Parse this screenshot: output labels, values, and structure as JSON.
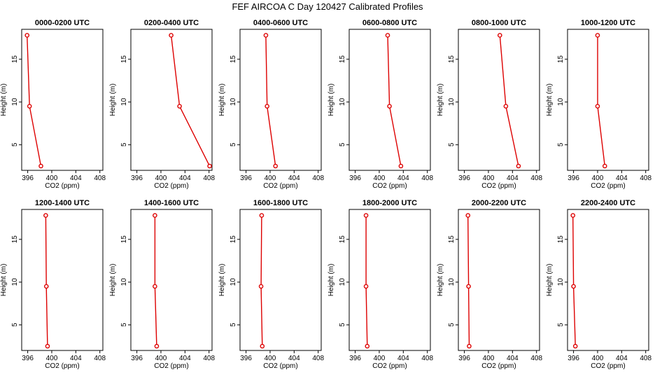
{
  "figure": {
    "title": "FEF AIRCOA C  Day 120427  Calibrated Profiles"
  },
  "chart_data": [
    {
      "type": "line",
      "title": "0000-0200 UTC",
      "xlabel": "CO2 (ppm)",
      "ylabel": "Height (m)",
      "xlim": [
        395,
        408.5
      ],
      "ylim": [
        2,
        18.5
      ],
      "x_ticks": [
        "396",
        "400",
        "404",
        "408"
      ],
      "y_ticks": [
        "5",
        "10",
        "15"
      ],
      "series": [
        {
          "x": [
            395.9,
            396.3,
            398.2
          ],
          "y": [
            17.8,
            9.5,
            2.5
          ],
          "color": "#dd0000"
        }
      ]
    },
    {
      "type": "line",
      "title": "0200-0400 UTC",
      "xlabel": "CO2 (ppm)",
      "ylabel": "Height (m)",
      "xlim": [
        395,
        408.5
      ],
      "ylim": [
        2,
        18.5
      ],
      "x_ticks": [
        "396",
        "400",
        "404",
        "408"
      ],
      "y_ticks": [
        "5",
        "10",
        "15"
      ],
      "series": [
        {
          "x": [
            401.7,
            403.1,
            408.1
          ],
          "y": [
            17.8,
            9.5,
            2.5
          ],
          "color": "#dd0000"
        }
      ]
    },
    {
      "type": "line",
      "title": "0400-0600 UTC",
      "xlabel": "CO2 (ppm)",
      "ylabel": "Height (m)",
      "xlim": [
        395,
        408.5
      ],
      "ylim": [
        2,
        18.5
      ],
      "x_ticks": [
        "396",
        "400",
        "404",
        "408"
      ],
      "y_ticks": [
        "5",
        "10",
        "15"
      ],
      "series": [
        {
          "x": [
            399.3,
            399.5,
            400.9
          ],
          "y": [
            17.8,
            9.5,
            2.5
          ],
          "color": "#dd0000"
        }
      ]
    },
    {
      "type": "line",
      "title": "0600-0800 UTC",
      "xlabel": "CO2 (ppm)",
      "ylabel": "Height (m)",
      "xlim": [
        395,
        408.5
      ],
      "ylim": [
        2,
        18.5
      ],
      "x_ticks": [
        "396",
        "400",
        "404",
        "408"
      ],
      "y_ticks": [
        "5",
        "10",
        "15"
      ],
      "series": [
        {
          "x": [
            401.4,
            401.7,
            403.6
          ],
          "y": [
            17.8,
            9.5,
            2.5
          ],
          "color": "#dd0000"
        }
      ]
    },
    {
      "type": "line",
      "title": "0800-1000 UTC",
      "xlabel": "CO2 (ppm)",
      "ylabel": "Height (m)",
      "xlim": [
        395,
        408.5
      ],
      "ylim": [
        2,
        18.5
      ],
      "x_ticks": [
        "396",
        "400",
        "404",
        "408"
      ],
      "y_ticks": [
        "5",
        "10",
        "15"
      ],
      "series": [
        {
          "x": [
            401.9,
            402.9,
            405.0
          ],
          "y": [
            17.8,
            9.5,
            2.5
          ],
          "color": "#dd0000"
        }
      ]
    },
    {
      "type": "line",
      "title": "1000-1200 UTC",
      "xlabel": "CO2 (ppm)",
      "ylabel": "Height (m)",
      "xlim": [
        395,
        408.5
      ],
      "ylim": [
        2,
        18.5
      ],
      "x_ticks": [
        "396",
        "400",
        "404",
        "408"
      ],
      "y_ticks": [
        "5",
        "10",
        "15"
      ],
      "series": [
        {
          "x": [
            400.0,
            400.0,
            401.2
          ],
          "y": [
            17.8,
            9.5,
            2.5
          ],
          "color": "#dd0000"
        }
      ]
    },
    {
      "type": "line",
      "title": "1200-1400 UTC",
      "xlabel": "CO2 (ppm)",
      "ylabel": "Height (m)",
      "xlim": [
        395,
        408.5
      ],
      "ylim": [
        2,
        18.5
      ],
      "x_ticks": [
        "396",
        "400",
        "404",
        "408"
      ],
      "y_ticks": [
        "5",
        "10",
        "15"
      ],
      "series": [
        {
          "x": [
            399.0,
            399.1,
            399.3
          ],
          "y": [
            17.8,
            9.5,
            2.5
          ],
          "color": "#dd0000"
        }
      ]
    },
    {
      "type": "line",
      "title": "1400-1600 UTC",
      "xlabel": "CO2 (ppm)",
      "ylabel": "Height (m)",
      "xlim": [
        395,
        408.5
      ],
      "ylim": [
        2,
        18.5
      ],
      "x_ticks": [
        "396",
        "400",
        "404",
        "408"
      ],
      "y_ticks": [
        "5",
        "10",
        "15"
      ],
      "series": [
        {
          "x": [
            399.0,
            399.0,
            399.3
          ],
          "y": [
            17.8,
            9.5,
            2.5
          ],
          "color": "#dd0000"
        }
      ]
    },
    {
      "type": "line",
      "title": "1600-1800 UTC",
      "xlabel": "CO2 (ppm)",
      "ylabel": "Height (m)",
      "xlim": [
        395,
        408.5
      ],
      "ylim": [
        2,
        18.5
      ],
      "x_ticks": [
        "396",
        "400",
        "404",
        "408"
      ],
      "y_ticks": [
        "5",
        "10",
        "15"
      ],
      "series": [
        {
          "x": [
            398.6,
            398.5,
            398.7
          ],
          "y": [
            17.8,
            9.5,
            2.5
          ],
          "color": "#dd0000"
        }
      ]
    },
    {
      "type": "line",
      "title": "1800-2000 UTC",
      "xlabel": "CO2 (ppm)",
      "ylabel": "Height (m)",
      "xlim": [
        395,
        408.5
      ],
      "ylim": [
        2,
        18.5
      ],
      "x_ticks": [
        "396",
        "400",
        "404",
        "408"
      ],
      "y_ticks": [
        "5",
        "10",
        "15"
      ],
      "series": [
        {
          "x": [
            397.8,
            397.8,
            398.0
          ],
          "y": [
            17.8,
            9.5,
            2.5
          ],
          "color": "#dd0000"
        }
      ]
    },
    {
      "type": "line",
      "title": "2000-2200 UTC",
      "xlabel": "CO2 (ppm)",
      "ylabel": "Height (m)",
      "xlim": [
        395,
        408.5
      ],
      "ylim": [
        2,
        18.5
      ],
      "x_ticks": [
        "396",
        "400",
        "404",
        "408"
      ],
      "y_ticks": [
        "5",
        "10",
        "15"
      ],
      "series": [
        {
          "x": [
            396.6,
            396.7,
            396.8
          ],
          "y": [
            17.8,
            9.5,
            2.5
          ],
          "color": "#dd0000"
        }
      ]
    },
    {
      "type": "line",
      "title": "2200-2400 UTC",
      "xlabel": "CO2 (ppm)",
      "ylabel": "Height (m)",
      "xlim": [
        395,
        408.5
      ],
      "ylim": [
        2,
        18.5
      ],
      "x_ticks": [
        "396",
        "400",
        "404",
        "408"
      ],
      "y_ticks": [
        "5",
        "10",
        "15"
      ],
      "series": [
        {
          "x": [
            395.9,
            396.0,
            396.3
          ],
          "y": [
            17.8,
            9.5,
            2.5
          ],
          "color": "#dd0000"
        }
      ]
    }
  ]
}
